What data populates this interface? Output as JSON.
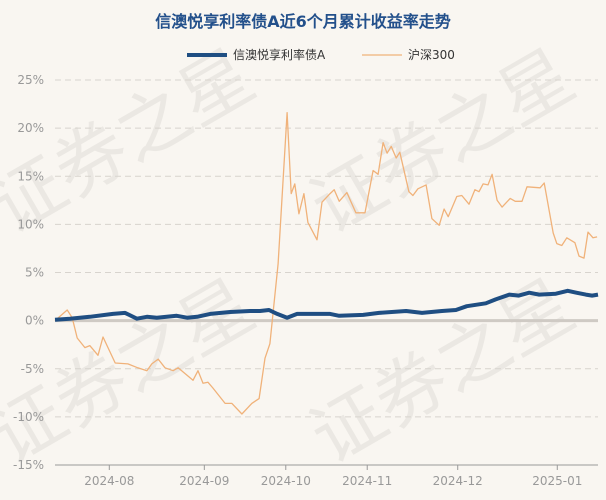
{
  "watermark": "证券之星",
  "chart_data": {
    "type": "line",
    "title": "信澳悦享利率债A近6个月累计收益率走势",
    "xlabel": "",
    "ylabel": "",
    "ylim": [
      -15,
      25
    ],
    "xlim": [
      0,
      120
    ],
    "yticks": [
      -15,
      -10,
      -5,
      0,
      5,
      10,
      15,
      20,
      25
    ],
    "ytick_labels": [
      "-15%",
      "-10%",
      "-5%",
      "0%",
      "5%",
      "10%",
      "15%",
      "20%",
      "25%"
    ],
    "xticks": [
      12,
      33,
      51,
      69,
      89,
      111
    ],
    "xtick_labels": [
      "2024-08",
      "2024-09",
      "2024-10",
      "2024-11",
      "2024-12",
      "2025-01"
    ],
    "grid": true,
    "legend_position": "top-center",
    "x_unit": "trading day index",
    "series": [
      {
        "name": "信澳悦享利率债A",
        "color": "#1f4e82",
        "points": [
          [
            0,
            0.1
          ],
          [
            3.3,
            0.2
          ],
          [
            7.7,
            0.4
          ],
          [
            12.8,
            0.7
          ],
          [
            15.5,
            0.8
          ],
          [
            18.1,
            0.2
          ],
          [
            20.3,
            0.4
          ],
          [
            22.5,
            0.3
          ],
          [
            26.9,
            0.5
          ],
          [
            29.2,
            0.3
          ],
          [
            31.4,
            0.4
          ],
          [
            34.3,
            0.7
          ],
          [
            38.7,
            0.9
          ],
          [
            43.1,
            1.0
          ],
          [
            45.3,
            1.0
          ],
          [
            47.3,
            1.1
          ],
          [
            49.1,
            0.7
          ],
          [
            51.3,
            0.3
          ],
          [
            53.5,
            0.7
          ],
          [
            57.9,
            0.7
          ],
          [
            60.8,
            0.7
          ],
          [
            62.8,
            0.5
          ],
          [
            68.1,
            0.6
          ],
          [
            71.6,
            0.8
          ],
          [
            77.6,
            1.0
          ],
          [
            81.1,
            0.8
          ],
          [
            85.5,
            1.0
          ],
          [
            88.6,
            1.1
          ],
          [
            91.0,
            1.5
          ],
          [
            95.2,
            1.8
          ],
          [
            97.4,
            2.2
          ],
          [
            100.4,
            2.7
          ],
          [
            102.5,
            2.6
          ],
          [
            104.8,
            2.9
          ],
          [
            107.0,
            2.7
          ],
          [
            110.7,
            2.8
          ],
          [
            113.3,
            3.1
          ],
          [
            115.2,
            2.9
          ],
          [
            117.3,
            2.7
          ],
          [
            118.7,
            2.6
          ],
          [
            120,
            2.7
          ]
        ]
      },
      {
        "name": "沪深300",
        "color": "#f0b27a",
        "points": [
          [
            0,
            0.0
          ],
          [
            2.7,
            1.1
          ],
          [
            3.8,
            0.3
          ],
          [
            4.9,
            -1.8
          ],
          [
            6.6,
            -2.8
          ],
          [
            7.7,
            -2.6
          ],
          [
            9.5,
            -3.6
          ],
          [
            10.6,
            -1.7
          ],
          [
            13.3,
            -4.4
          ],
          [
            16.1,
            -4.5
          ],
          [
            18.3,
            -4.9
          ],
          [
            20.3,
            -5.2
          ],
          [
            21.4,
            -4.5
          ],
          [
            22.8,
            -4.0
          ],
          [
            24.3,
            -4.9
          ],
          [
            26.1,
            -5.2
          ],
          [
            27.2,
            -4.9
          ],
          [
            30.5,
            -6.2
          ],
          [
            31.6,
            -5.2
          ],
          [
            32.7,
            -6.5
          ],
          [
            33.8,
            -6.4
          ],
          [
            34.9,
            -7.0
          ],
          [
            37.6,
            -8.6
          ],
          [
            39.1,
            -8.6
          ],
          [
            41.3,
            -9.7
          ],
          [
            43.5,
            -8.6
          ],
          [
            45.1,
            -8.1
          ],
          [
            46.4,
            -3.9
          ],
          [
            47.5,
            -2.4
          ],
          [
            49.3,
            5.9
          ],
          [
            51.3,
            21.6
          ],
          [
            52.2,
            13.2
          ],
          [
            53.0,
            14.2
          ],
          [
            53.9,
            11.1
          ],
          [
            55.0,
            13.2
          ],
          [
            55.9,
            10.2
          ],
          [
            57.9,
            8.4
          ],
          [
            59.0,
            12.3
          ],
          [
            60.8,
            13.2
          ],
          [
            61.7,
            13.6
          ],
          [
            62.8,
            12.4
          ],
          [
            64.5,
            13.3
          ],
          [
            66.5,
            11.2
          ],
          [
            68.5,
            11.2
          ],
          [
            70.3,
            15.6
          ],
          [
            71.4,
            15.2
          ],
          [
            72.5,
            18.5
          ],
          [
            73.4,
            17.4
          ],
          [
            74.3,
            18.1
          ],
          [
            75.4,
            16.9
          ],
          [
            76.2,
            17.5
          ],
          [
            78.2,
            13.4
          ],
          [
            79.1,
            13.0
          ],
          [
            80.2,
            13.7
          ],
          [
            82.0,
            14.1
          ],
          [
            83.3,
            10.6
          ],
          [
            84.9,
            9.9
          ],
          [
            86.0,
            11.6
          ],
          [
            86.9,
            10.8
          ],
          [
            88.8,
            12.9
          ],
          [
            89.9,
            13.0
          ],
          [
            91.5,
            12.1
          ],
          [
            92.8,
            13.6
          ],
          [
            93.7,
            13.4
          ],
          [
            94.6,
            14.2
          ],
          [
            95.7,
            14.1
          ],
          [
            96.6,
            15.2
          ],
          [
            97.7,
            12.5
          ],
          [
            98.8,
            11.8
          ],
          [
            100.6,
            12.7
          ],
          [
            101.7,
            12.4
          ],
          [
            103.2,
            12.4
          ],
          [
            104.3,
            13.9
          ],
          [
            107.2,
            13.8
          ],
          [
            108.1,
            14.3
          ],
          [
            110.1,
            9.1
          ],
          [
            110.9,
            8.0
          ],
          [
            112.0,
            7.8
          ],
          [
            113.1,
            8.6
          ],
          [
            114.9,
            8.1
          ],
          [
            115.8,
            6.7
          ],
          [
            116.9,
            6.5
          ],
          [
            117.8,
            9.2
          ],
          [
            118.9,
            8.6
          ],
          [
            119.8,
            8.7
          ]
        ]
      }
    ]
  }
}
